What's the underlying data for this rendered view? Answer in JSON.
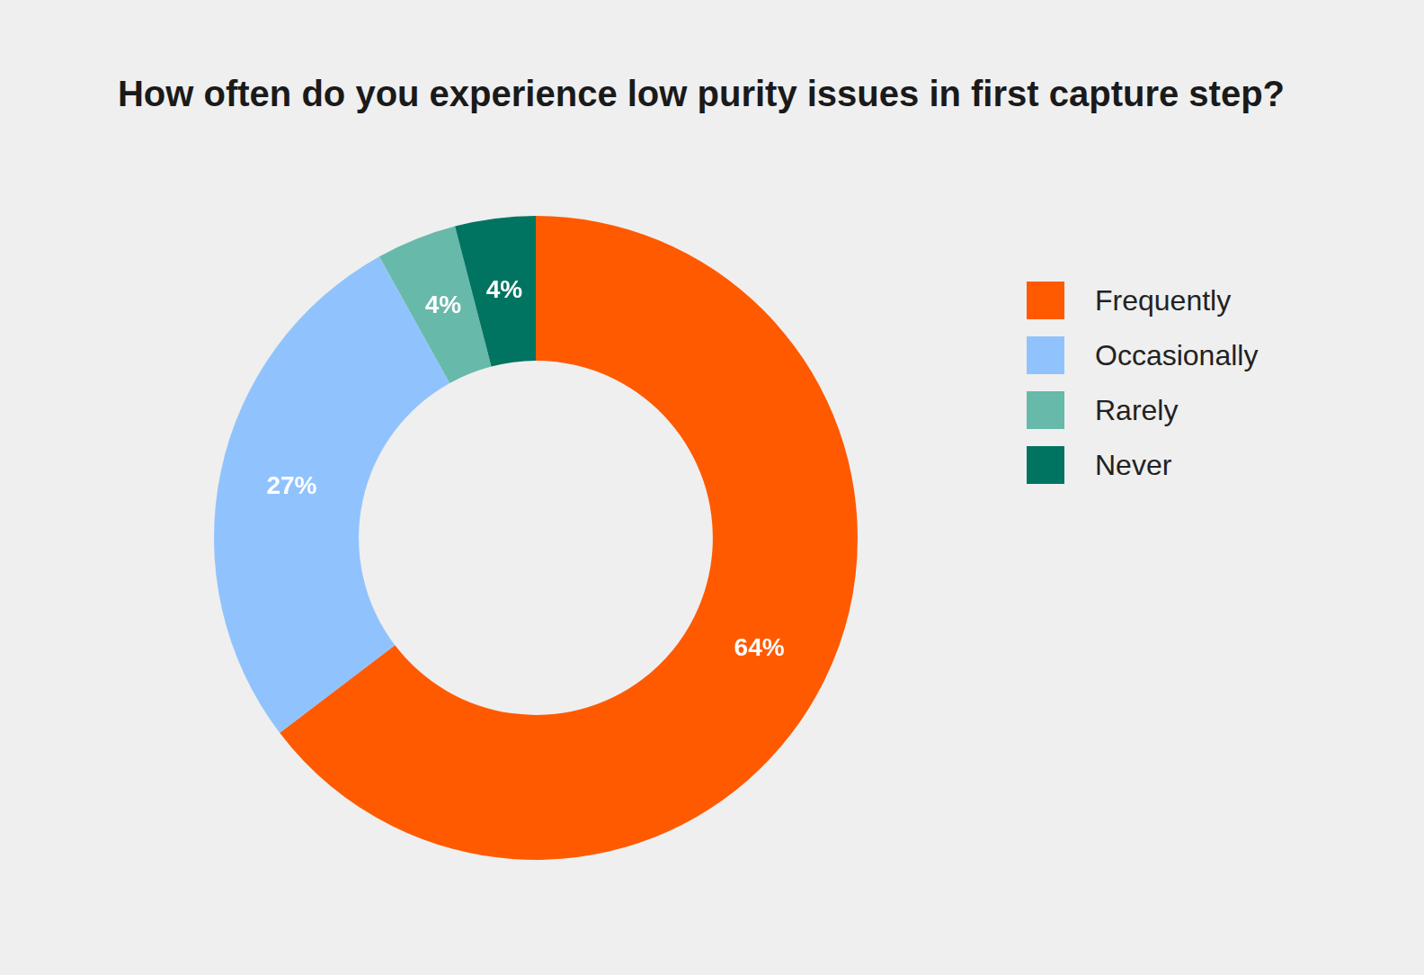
{
  "chart_data": {
    "type": "doughnut",
    "title": "How often do you experience low purity issues in first capture step?",
    "categories": [
      "Frequently",
      "Occasionally",
      "Rarely",
      "Never"
    ],
    "values": [
      64,
      27,
      4,
      4
    ],
    "value_labels": [
      "64%",
      "27%",
      "4%",
      "4%"
    ],
    "colors": [
      "#ff5a00",
      "#90c3fd",
      "#67b9a9",
      "#007461"
    ],
    "data_labels": true,
    "legend": "right"
  }
}
